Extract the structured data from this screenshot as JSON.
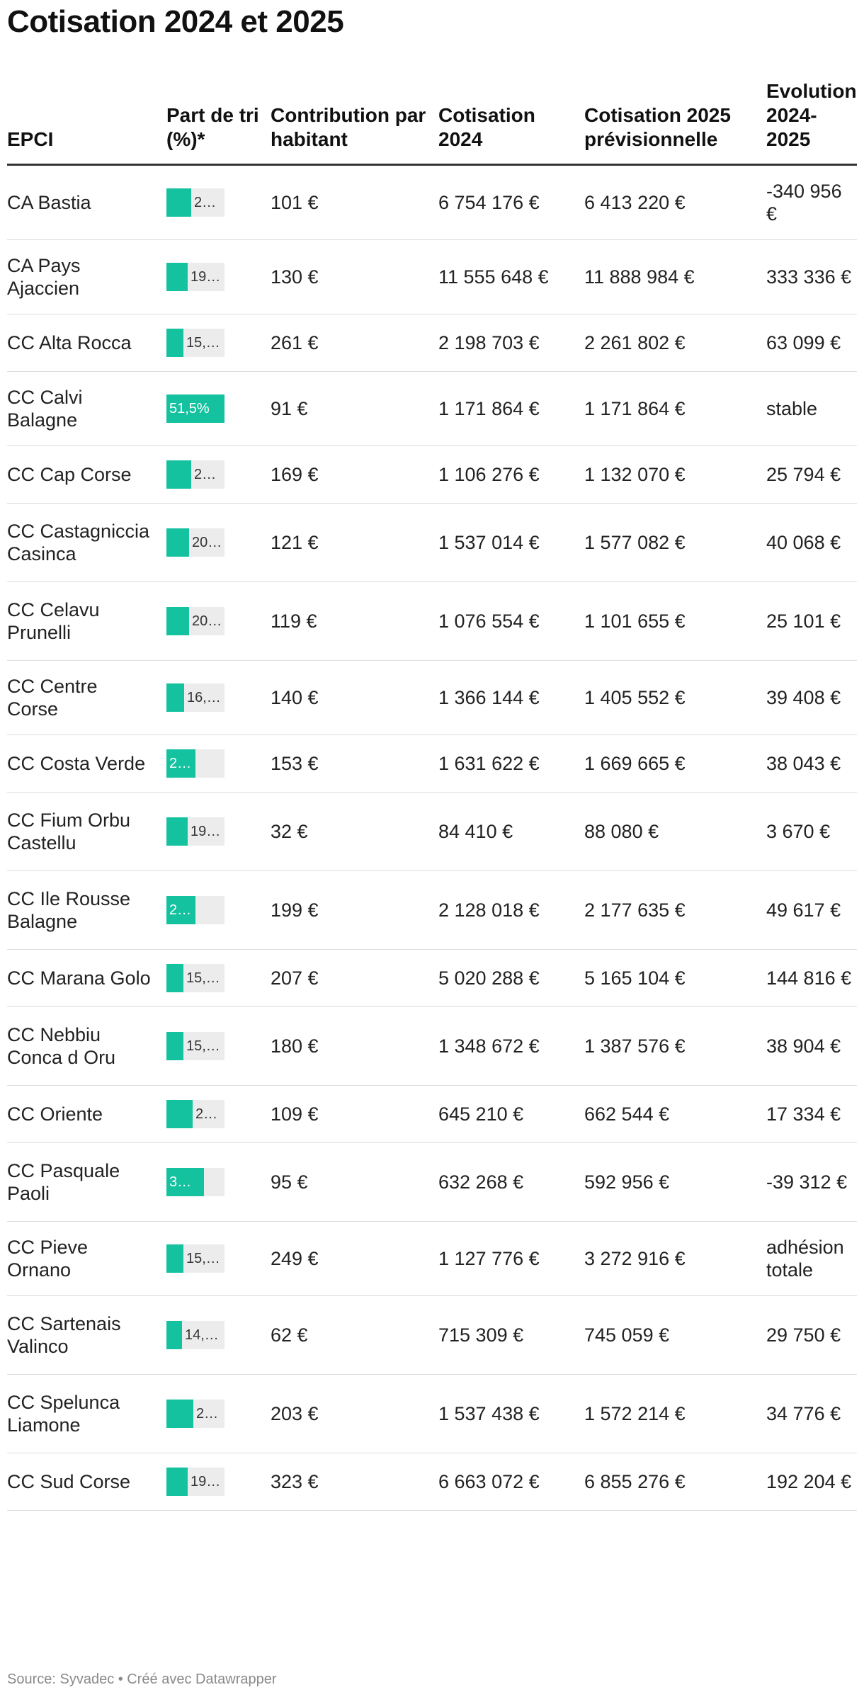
{
  "title": "Cotisation 2024 et 2025",
  "source": "Source: Syvadec • Créé avec Datawrapper",
  "colors": {
    "bar_fill": "#15c29f",
    "bar_track": "#ececec",
    "header_rule": "#333333"
  },
  "columns": [
    "EPCI",
    "Part de tri (%)*",
    "Contribution par habitant",
    "Cotisation 2024",
    "Cotisation 2025 prévisionnelle",
    "Evolution 2024-2025"
  ],
  "chart_data": {
    "type": "table",
    "bar_column": "Part de tri (%)*",
    "bar_max": 51.5,
    "rows": [
      {
        "epci": "CA Bastia",
        "part_label": "2…",
        "part_value": 22,
        "contrib": "101 €",
        "cot2024": "6 754 176 €",
        "cot2025": "6 413 220 €",
        "evolution": "-340 956 €"
      },
      {
        "epci": "CA Pays Ajaccien",
        "part_label": "19…",
        "part_value": 19,
        "contrib": "130 €",
        "cot2024": "11 555 648 €",
        "cot2025": "11 888 984 €",
        "evolution": "333 336 €"
      },
      {
        "epci": "CC Alta Rocca",
        "part_label": "15,…",
        "part_value": 15,
        "contrib": "261 €",
        "cot2024": "2 198 703 €",
        "cot2025": "2 261 802 €",
        "evolution": "63 099 €"
      },
      {
        "epci": "CC Calvi Balagne",
        "part_label": "51,5%",
        "part_value": 51.5,
        "contrib": "91 €",
        "cot2024": "1 171 864 €",
        "cot2025": "1 171 864 €",
        "evolution": "stable"
      },
      {
        "epci": "CC Cap Corse",
        "part_label": "2…",
        "part_value": 22,
        "contrib": "169 €",
        "cot2024": "1 106 276 €",
        "cot2025": "1 132 070 €",
        "evolution": "25 794 €"
      },
      {
        "epci": "CC Castagniccia Casinca",
        "part_label": "20…",
        "part_value": 20,
        "contrib": "121 €",
        "cot2024": "1 537 014 €",
        "cot2025": "1 577 082 €",
        "evolution": "40 068 €"
      },
      {
        "epci": "CC Celavu Prunelli",
        "part_label": "20…",
        "part_value": 20,
        "contrib": "119 €",
        "cot2024": "1 076 554 €",
        "cot2025": "1 101 655 €",
        "evolution": "25 101 €"
      },
      {
        "epci": "CC Centre Corse",
        "part_label": "16,…",
        "part_value": 16,
        "contrib": "140 €",
        "cot2024": "1 366 144 €",
        "cot2025": "1 405 552 €",
        "evolution": "39 408 €"
      },
      {
        "epci": "CC Costa Verde",
        "part_label": "2…",
        "part_value": 26,
        "contrib": "153 €",
        "cot2024": "1 631 622 €",
        "cot2025": "1 669 665 €",
        "evolution": "38 043 €"
      },
      {
        "epci": "CC Fium Orbu Castellu",
        "part_label": "19…",
        "part_value": 19,
        "contrib": "32 €",
        "cot2024": "84 410 €",
        "cot2025": "88 080 €",
        "evolution": "3 670 €"
      },
      {
        "epci": "CC Ile Rousse Balagne",
        "part_label": "2…",
        "part_value": 26,
        "contrib": "199 €",
        "cot2024": "2 128 018 €",
        "cot2025": "2 177 635 €",
        "evolution": "49 617 €"
      },
      {
        "epci": "CC Marana Golo",
        "part_label": "15,…",
        "part_value": 15,
        "contrib": "207 €",
        "cot2024": "5 020 288 €",
        "cot2025": "5 165 104 €",
        "evolution": "144 816 €"
      },
      {
        "epci": "CC Nebbiu Conca d Oru",
        "part_label": "15,…",
        "part_value": 15,
        "contrib": "180 €",
        "cot2024": "1 348 672 €",
        "cot2025": "1 387 576 €",
        "evolution": "38 904 €"
      },
      {
        "epci": "CC Oriente",
        "part_label": "2…",
        "part_value": 23,
        "contrib": "109 €",
        "cot2024": "645 210 €",
        "cot2025": "662 544 €",
        "evolution": "17 334 €"
      },
      {
        "epci": "CC Pasquale Paoli",
        "part_label": "3…",
        "part_value": 33,
        "contrib": "95 €",
        "cot2024": "632 268 €",
        "cot2025": "592 956 €",
        "evolution": "-39 312 €"
      },
      {
        "epci": "CC Pieve Ornano",
        "part_label": "15,…",
        "part_value": 15,
        "contrib": "249 €",
        "cot2024": "1 127 776 €",
        "cot2025": "3 272 916 €",
        "evolution": "adhésion totale"
      },
      {
        "epci": "CC Sartenais Valinco",
        "part_label": "14,…",
        "part_value": 14,
        "contrib": "62 €",
        "cot2024": "715 309 €",
        "cot2025": "745 059 €",
        "evolution": "29 750 €"
      },
      {
        "epci": "CC Spelunca Liamone",
        "part_label": "2…",
        "part_value": 24,
        "contrib": "203 €",
        "cot2024": "1 537 438 €",
        "cot2025": "1 572 214 €",
        "evolution": "34 776 €"
      },
      {
        "epci": "CC Sud Corse",
        "part_label": "19…",
        "part_value": 19,
        "contrib": "323 €",
        "cot2024": "6 663 072 €",
        "cot2025": "6 855 276 €",
        "evolution": "192 204 €"
      }
    ]
  }
}
